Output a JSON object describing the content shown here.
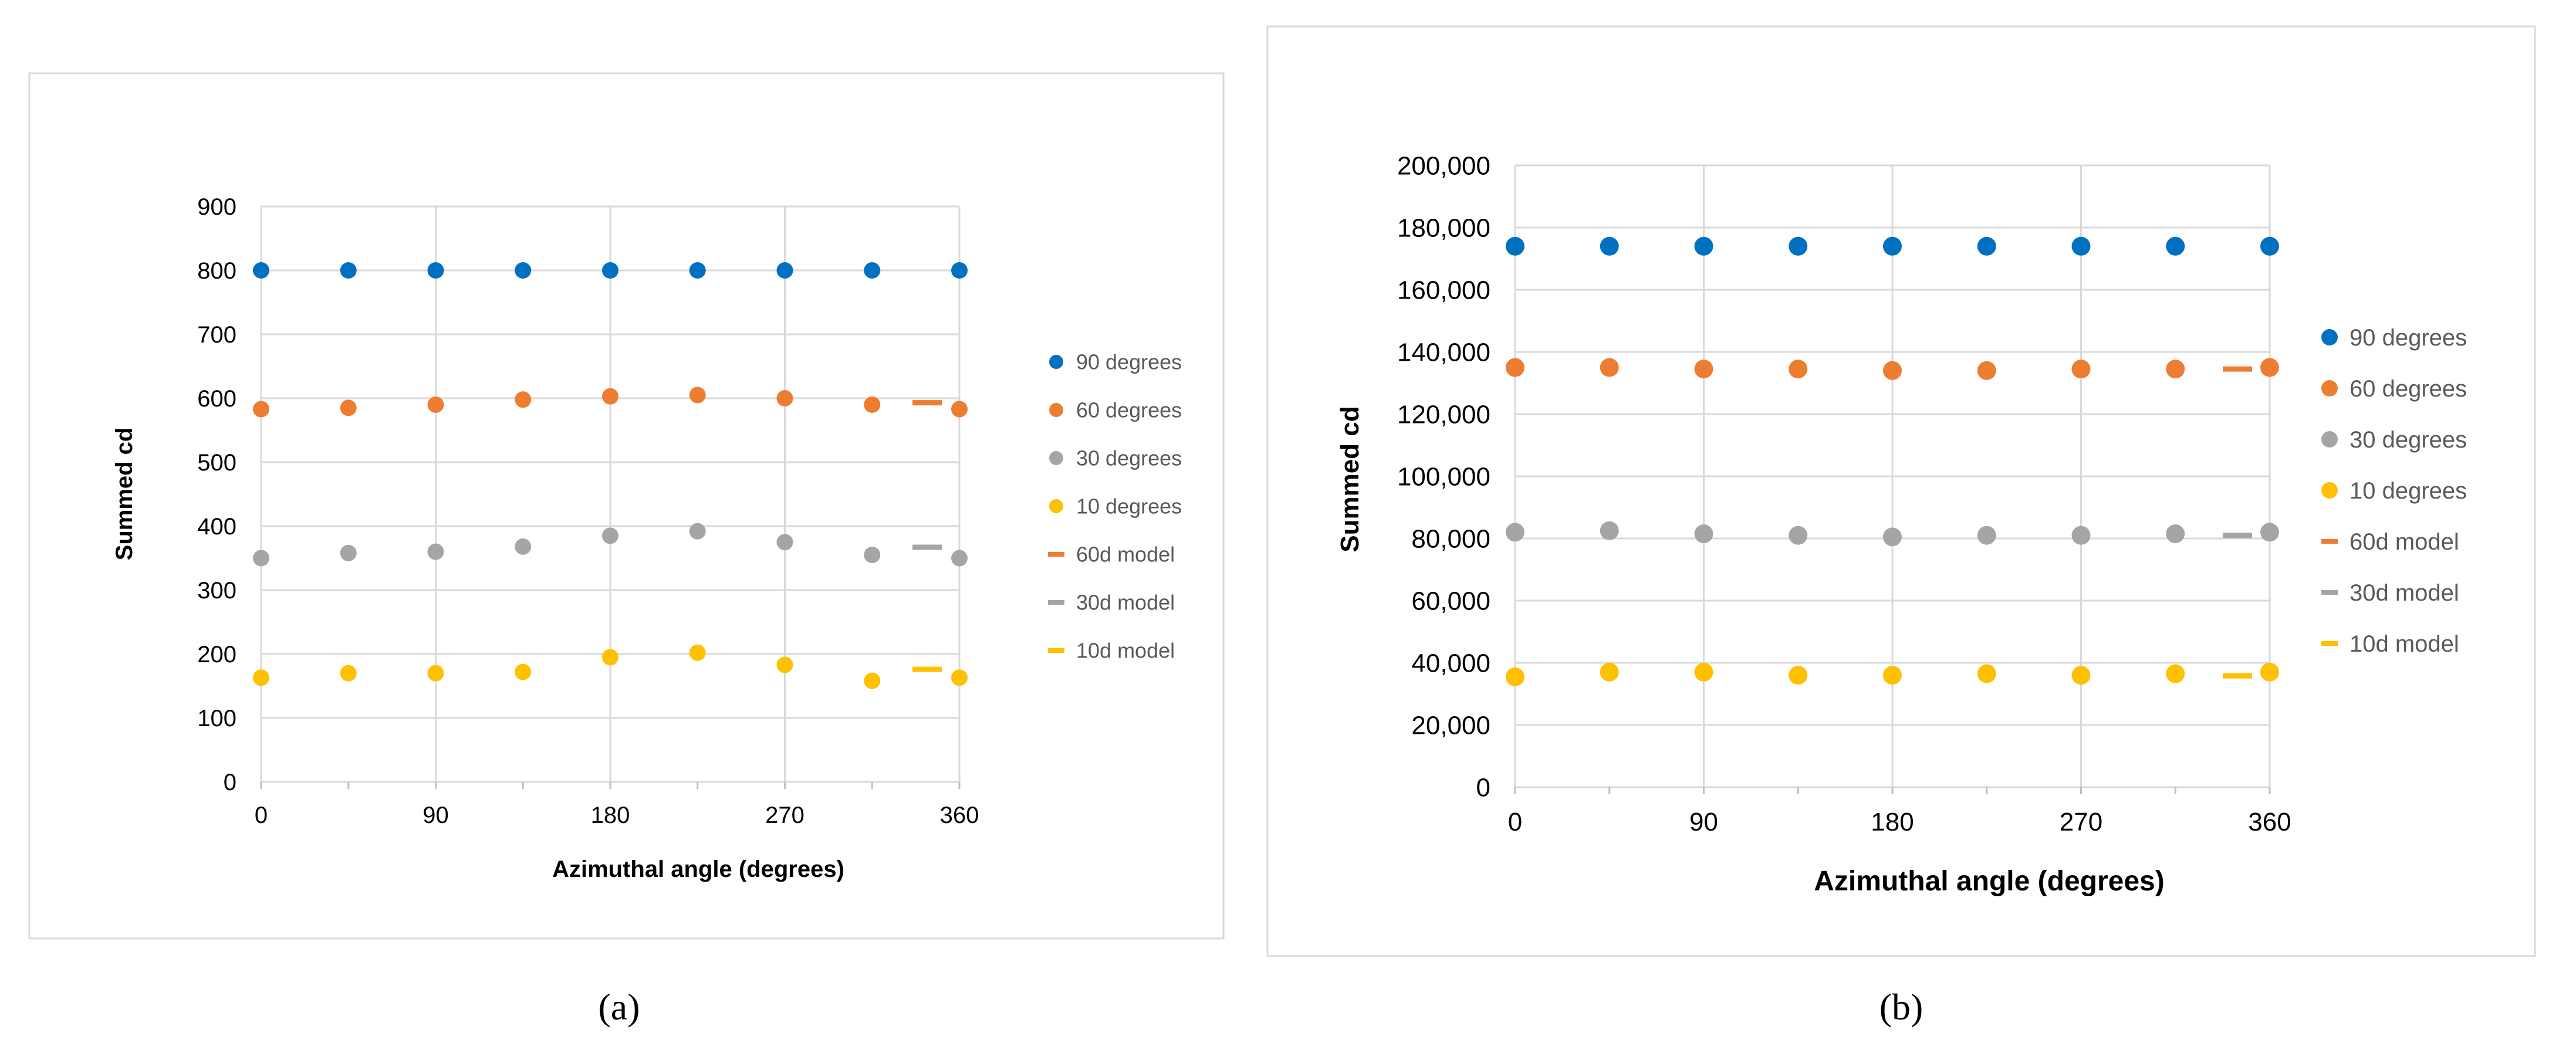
{
  "chart_data": [
    {
      "type": "scatter",
      "panel_label": "a",
      "title": "",
      "xlabel": "Azimuthal angle (degrees)",
      "ylabel": "Summed cd",
      "xlim": [
        0,
        360
      ],
      "ylim": [
        0,
        900
      ],
      "xticks": [
        "0",
        "90",
        "180",
        "270",
        "360"
      ],
      "yticks": [
        "0",
        "100",
        "200",
        "300",
        "400",
        "500",
        "600",
        "700",
        "800",
        "900"
      ],
      "grid": true,
      "legend_position": "right",
      "x": [
        0,
        45,
        90,
        135,
        180,
        225,
        270,
        315,
        360
      ],
      "series": [
        {
          "name": "90 degrees",
          "color": "#0070C0",
          "values": [
            800,
            800,
            800,
            800,
            800,
            800,
            800,
            800,
            800
          ]
        },
        {
          "name": "60 degrees",
          "color": "#ED7D31",
          "values": [
            583,
            585,
            590,
            598,
            603,
            605,
            600,
            590,
            583
          ]
        },
        {
          "name": "30 degrees",
          "color": "#A5A5A5",
          "values": [
            350,
            358,
            360,
            368,
            385,
            392,
            375,
            355,
            350
          ]
        },
        {
          "name": "10 degrees",
          "color": "#FFC000",
          "values": [
            163,
            170,
            170,
            172,
            195,
            202,
            183,
            158,
            163
          ]
        }
      ],
      "models": [
        {
          "name": "60d model",
          "color": "#ED7D31",
          "value": 593
        },
        {
          "name": "30d model",
          "color": "#A5A5A5",
          "value": 367
        },
        {
          "name": "10d model",
          "color": "#FFC000",
          "value": 176
        }
      ]
    },
    {
      "type": "scatter",
      "panel_label": "b",
      "title": "",
      "xlabel": "Azimuthal angle (degrees)",
      "ylabel": "Summed cd",
      "xlim": [
        0,
        360
      ],
      "ylim": [
        0,
        200000
      ],
      "xticks": [
        "0",
        "90",
        "180",
        "270",
        "360"
      ],
      "yticks": [
        "0",
        "20,000",
        "40,000",
        "60,000",
        "80,000",
        "100,000",
        "120,000",
        "140,000",
        "160,000",
        "180,000",
        "200,000"
      ],
      "grid": true,
      "legend_position": "right",
      "x": [
        0,
        45,
        90,
        135,
        180,
        225,
        270,
        315,
        360
      ],
      "series": [
        {
          "name": "90 degrees",
          "color": "#0070C0",
          "values": [
            174000,
            174000,
            174000,
            174000,
            174000,
            174000,
            174000,
            174000,
            174000
          ]
        },
        {
          "name": "60 degrees",
          "color": "#ED7D31",
          "values": [
            135000,
            135000,
            134500,
            134500,
            134000,
            134000,
            134500,
            134500,
            135000
          ]
        },
        {
          "name": "30 degrees",
          "color": "#A5A5A5",
          "values": [
            82000,
            82500,
            81500,
            81000,
            80500,
            81000,
            81000,
            81500,
            82000
          ]
        },
        {
          "name": "10 degrees",
          "color": "#FFC000",
          "values": [
            35500,
            37000,
            37000,
            36000,
            36000,
            36500,
            36000,
            36500,
            37000
          ]
        }
      ],
      "models": [
        {
          "name": "60d model",
          "color": "#ED7D31",
          "value": 134500
        },
        {
          "name": "30d model",
          "color": "#A5A5A5",
          "value": 81000
        },
        {
          "name": "10d model",
          "color": "#FFC000",
          "value": 35800
        }
      ]
    }
  ],
  "captions": {
    "a": "(a)",
    "b": "(b)"
  }
}
